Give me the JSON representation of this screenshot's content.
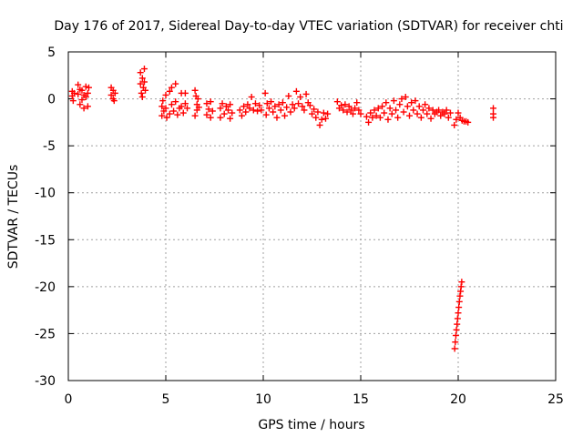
{
  "chart_data": {
    "type": "scatter",
    "title": "Day 176 of 2017, Sidereal Day-to-day VTEC variation (SDTVAR) for receiver chti",
    "xlabel": "GPS time / hours",
    "ylabel": "SDTVAR / TECUs",
    "xlim": [
      0,
      25
    ],
    "ylim": [
      -30,
      5
    ],
    "xticks": [
      0,
      5,
      10,
      15,
      20,
      25
    ],
    "yticks": [
      5,
      0,
      -5,
      -10,
      -15,
      -20,
      -25,
      -30
    ],
    "grid": true,
    "marker": "+",
    "color": "#ff0000",
    "series": [
      {
        "name": "SDTVAR",
        "points": [
          [
            0.2,
            0.8
          ],
          [
            0.2,
            0.3
          ],
          [
            0.25,
            -0.2
          ],
          [
            0.3,
            0.6
          ],
          [
            0.5,
            1.5
          ],
          [
            0.5,
            0.5
          ],
          [
            0.6,
            -0.6
          ],
          [
            0.6,
            1.0
          ],
          [
            0.7,
            -0.1
          ],
          [
            0.7,
            0.9
          ],
          [
            0.8,
            -1.0
          ],
          [
            0.8,
            0.4
          ],
          [
            0.9,
            0.2
          ],
          [
            0.9,
            1.3
          ],
          [
            1.0,
            -0.8
          ],
          [
            1.0,
            0.6
          ],
          [
            1.05,
            1.2
          ],
          [
            2.2,
            1.2
          ],
          [
            2.2,
            0.4
          ],
          [
            2.3,
            0.9
          ],
          [
            2.3,
            0.0
          ],
          [
            2.35,
            -0.2
          ],
          [
            2.4,
            0.6
          ],
          [
            3.7,
            2.8
          ],
          [
            3.7,
            1.6
          ],
          [
            3.75,
            0.6
          ],
          [
            3.8,
            2.2
          ],
          [
            3.8,
            0.2
          ],
          [
            3.85,
            1.2
          ],
          [
            3.9,
            3.2
          ],
          [
            3.9,
            1.8
          ],
          [
            3.95,
            0.9
          ],
          [
            4.8,
            -0.8
          ],
          [
            4.8,
            -1.8
          ],
          [
            4.85,
            -0.2
          ],
          [
            4.9,
            -1.3
          ],
          [
            5.0,
            0.4
          ],
          [
            5.0,
            -1.0
          ],
          [
            5.05,
            -2.0
          ],
          [
            5.2,
            0.8
          ],
          [
            5.2,
            -1.6
          ],
          [
            5.3,
            1.2
          ],
          [
            5.3,
            -0.6
          ],
          [
            5.4,
            -1.3
          ],
          [
            5.5,
            1.6
          ],
          [
            5.5,
            -0.3
          ],
          [
            5.6,
            -1.7
          ],
          [
            5.7,
            -1.0
          ],
          [
            5.8,
            0.6
          ],
          [
            5.8,
            -0.8
          ],
          [
            5.9,
            -1.5
          ],
          [
            6.0,
            -0.5
          ],
          [
            6.0,
            0.6
          ],
          [
            6.1,
            -1.0
          ],
          [
            6.5,
            0.9
          ],
          [
            6.5,
            -1.8
          ],
          [
            6.55,
            0.3
          ],
          [
            6.6,
            -0.6
          ],
          [
            6.6,
            -1.2
          ],
          [
            6.65,
            0.0
          ],
          [
            6.7,
            -0.9
          ],
          [
            7.1,
            -0.5
          ],
          [
            7.1,
            -1.7
          ],
          [
            7.2,
            -1.1
          ],
          [
            7.3,
            -0.3
          ],
          [
            7.3,
            -2.0
          ],
          [
            7.4,
            -1.3
          ],
          [
            7.8,
            -1.0
          ],
          [
            7.8,
            -2.0
          ],
          [
            7.9,
            -0.5
          ],
          [
            8.0,
            -1.6
          ],
          [
            8.1,
            -0.8
          ],
          [
            8.2,
            -1.2
          ],
          [
            8.3,
            -0.6
          ],
          [
            8.3,
            -2.1
          ],
          [
            8.4,
            -1.5
          ],
          [
            8.8,
            -1.2
          ],
          [
            8.9,
            -1.8
          ],
          [
            9.0,
            -0.8
          ],
          [
            9.1,
            -1.4
          ],
          [
            9.2,
            -0.6
          ],
          [
            9.3,
            -1.0
          ],
          [
            9.4,
            0.2
          ],
          [
            9.5,
            -1.2
          ],
          [
            9.6,
            -0.5
          ],
          [
            9.7,
            -1.3
          ],
          [
            9.8,
            -0.7
          ],
          [
            9.9,
            -1.2
          ],
          [
            10.1,
            0.6
          ],
          [
            10.15,
            -1.7
          ],
          [
            10.2,
            -0.5
          ],
          [
            10.3,
            -1.0
          ],
          [
            10.4,
            -0.3
          ],
          [
            10.5,
            -1.4
          ],
          [
            10.6,
            -0.8
          ],
          [
            10.7,
            -2.0
          ],
          [
            10.8,
            -0.6
          ],
          [
            10.9,
            -1.2
          ],
          [
            11.0,
            -0.4
          ],
          [
            11.1,
            -1.8
          ],
          [
            11.2,
            -0.9
          ],
          [
            11.3,
            0.3
          ],
          [
            11.4,
            -1.4
          ],
          [
            11.5,
            -0.6
          ],
          [
            11.6,
            -1.0
          ],
          [
            11.7,
            0.8
          ],
          [
            11.8,
            -0.5
          ],
          [
            11.9,
            0.2
          ],
          [
            12.0,
            -0.8
          ],
          [
            12.1,
            -1.2
          ],
          [
            12.2,
            0.5
          ],
          [
            12.3,
            -0.4
          ],
          [
            12.4,
            -0.7
          ],
          [
            12.5,
            -1.6
          ],
          [
            12.6,
            -1.1
          ],
          [
            12.7,
            -2.0
          ],
          [
            12.8,
            -1.4
          ],
          [
            12.9,
            -2.8
          ],
          [
            13.0,
            -2.2
          ],
          [
            13.1,
            -1.5
          ],
          [
            13.2,
            -2.1
          ],
          [
            13.3,
            -1.6
          ],
          [
            13.8,
            -0.3
          ],
          [
            13.9,
            -1.0
          ],
          [
            14.0,
            -0.7
          ],
          [
            14.1,
            -1.2
          ],
          [
            14.2,
            -0.6
          ],
          [
            14.3,
            -1.4
          ],
          [
            14.4,
            -0.8
          ],
          [
            14.5,
            -1.2
          ],
          [
            14.6,
            -1.6
          ],
          [
            14.7,
            -1.0
          ],
          [
            14.8,
            -0.4
          ],
          [
            14.9,
            -1.2
          ],
          [
            15.0,
            -1.6
          ],
          [
            15.3,
            -1.9
          ],
          [
            15.4,
            -2.5
          ],
          [
            15.5,
            -1.5
          ],
          [
            15.6,
            -2.0
          ],
          [
            15.7,
            -1.2
          ],
          [
            15.8,
            -1.8
          ],
          [
            15.9,
            -1.0
          ],
          [
            16.0,
            -2.0
          ],
          [
            16.1,
            -0.8
          ],
          [
            16.2,
            -1.5
          ],
          [
            16.3,
            -0.4
          ],
          [
            16.4,
            -2.2
          ],
          [
            16.5,
            -1.0
          ],
          [
            16.6,
            -1.6
          ],
          [
            16.7,
            -0.2
          ],
          [
            16.8,
            -1.2
          ],
          [
            16.9,
            -2.0
          ],
          [
            17.0,
            -0.6
          ],
          [
            17.1,
            0.0
          ],
          [
            17.2,
            -1.4
          ],
          [
            17.3,
            0.2
          ],
          [
            17.4,
            -0.8
          ],
          [
            17.5,
            -1.8
          ],
          [
            17.6,
            -0.4
          ],
          [
            17.7,
            -1.2
          ],
          [
            17.8,
            -0.2
          ],
          [
            17.9,
            -1.6
          ],
          [
            18.0,
            -0.8
          ],
          [
            18.1,
            -2.0
          ],
          [
            18.2,
            -1.2
          ],
          [
            18.3,
            -0.6
          ],
          [
            18.4,
            -1.6
          ],
          [
            18.5,
            -1.0
          ],
          [
            18.6,
            -2.1
          ],
          [
            18.7,
            -1.2
          ],
          [
            18.8,
            -1.6
          ],
          [
            18.9,
            -1.4
          ],
          [
            19.0,
            -1.2
          ],
          [
            19.1,
            -1.8
          ],
          [
            19.2,
            -1.4
          ],
          [
            19.3,
            -1.6
          ],
          [
            19.4,
            -1.2
          ],
          [
            19.5,
            -2.0
          ],
          [
            19.6,
            -1.5
          ],
          [
            19.8,
            -2.8
          ],
          [
            19.9,
            -2.2
          ],
          [
            20.0,
            -1.5
          ],
          [
            20.1,
            -2.0
          ],
          [
            20.2,
            -2.3
          ],
          [
            20.3,
            -2.4
          ],
          [
            20.4,
            -2.4
          ],
          [
            20.5,
            -2.5
          ],
          [
            21.8,
            -1.0
          ],
          [
            21.8,
            -1.6
          ],
          [
            21.8,
            -2.0
          ],
          [
            19.82,
            -26.6
          ],
          [
            19.85,
            -25.9
          ],
          [
            19.88,
            -25.2
          ],
          [
            19.91,
            -24.6
          ],
          [
            19.94,
            -24.0
          ],
          [
            19.97,
            -23.4
          ],
          [
            20.0,
            -22.8
          ],
          [
            20.03,
            -22.2
          ],
          [
            20.06,
            -21.6
          ],
          [
            20.09,
            -21.0
          ],
          [
            20.12,
            -20.5
          ],
          [
            20.15,
            -20.0
          ],
          [
            20.18,
            -19.5
          ]
        ]
      }
    ]
  }
}
